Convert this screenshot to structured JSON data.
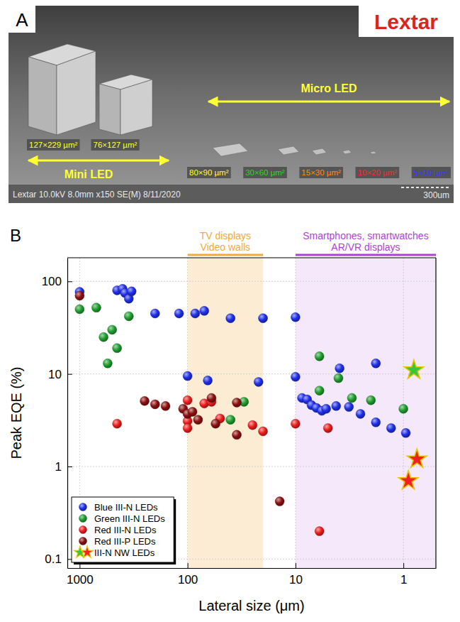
{
  "panel_a": {
    "label": "A",
    "logo": "Lextar",
    "micro_label": "Micro LED",
    "mini_label": "Mini LED",
    "mini_sizes": [
      {
        "text": "127×229 µm²",
        "color": "#ffff33"
      },
      {
        "text": "76×127 µm²",
        "color": "#ffff33"
      }
    ],
    "micro_sizes": [
      {
        "text": "80×90 µm²",
        "color": "#ffff33"
      },
      {
        "text": "30×60 µm²",
        "color": "#22dd22"
      },
      {
        "text": "15×30 µm²",
        "color": "#ff8c1a"
      },
      {
        "text": "10×20 µm²",
        "color": "#ff2a2a"
      },
      {
        "text": "5×10 µm²",
        "color": "#3a3aff"
      }
    ],
    "footer": "Lextar 10.0kV 8.0mm x150 SE(M) 8/11/2020",
    "scale_bar": "300um"
  },
  "chart_data": {
    "type": "scatter",
    "panel_label": "B",
    "x_label": "Lateral size (μm)",
    "y_label": "Peak EQE (%)",
    "log": true,
    "grid": true,
    "legend": "lower left",
    "xlim": [
      1300,
      0.5
    ],
    "xticks": [
      1000,
      100,
      10,
      1
    ],
    "ylim": [
      0.08,
      180
    ],
    "yticks": [
      0.1,
      1,
      10,
      100
    ],
    "annotations": [
      {
        "text": [
          "TV displays",
          "Video walls"
        ],
        "x_range": [
          100,
          20
        ],
        "color": "#f2a93b"
      },
      {
        "text": [
          "Smartphones, smartwatches",
          "AR/VR displays"
        ],
        "x_range": [
          10,
          0.5
        ],
        "color": "#b03fd6"
      }
    ],
    "series": [
      {
        "name": "Blue III-N LEDs",
        "color": "#1f2fe8",
        "marker": "circle",
        "x": [
          1000,
          450,
          400,
          380,
          350,
          330,
          200,
          120,
          100,
          85,
          70,
          65,
          40,
          22,
          20,
          10,
          10,
          8.7,
          7.8,
          7.1,
          6.4,
          5.7,
          5.2,
          4.2,
          3.2,
          2.5,
          1.8,
          1.3,
          0.95,
          3.9,
          1.8
        ],
        "values": [
          77,
          80,
          83,
          75,
          65,
          78,
          45,
          45,
          9.5,
          45,
          48,
          8.5,
          40,
          8.2,
          40,
          41,
          9.3,
          5.5,
          5.3,
          4.6,
          4.3,
          4.0,
          4.2,
          4.5,
          4.4,
          3.7,
          3.0,
          2.6,
          2.3,
          11.5,
          13
        ]
      },
      {
        "name": "Green III-N LEDs",
        "color": "#1e9e2e",
        "marker": "circle",
        "x": [
          1000,
          700,
          600,
          550,
          500,
          450,
          350,
          40,
          30,
          6,
          6,
          4,
          3,
          2,
          1
        ],
        "values": [
          50,
          52,
          25,
          13,
          30,
          19,
          42,
          3.2,
          5,
          15.5,
          6.6,
          9,
          5.5,
          5.2,
          4.2
        ]
      },
      {
        "name": "Red III-N LEDs",
        "color": "#ee1c1c",
        "marker": "circle",
        "x": [
          450,
          100,
          100,
          100,
          70,
          50,
          60,
          25,
          20,
          10,
          5,
          6
        ],
        "values": [
          2.9,
          5.2,
          3.1,
          2.6,
          4.8,
          3.3,
          5.0,
          2.8,
          2.4,
          2.9,
          2.6,
          0.2
        ]
      },
      {
        "name": "Red III-P LEDs",
        "color": "#8b0f0f",
        "marker": "circle",
        "x": [
          1000,
          250,
          200,
          160,
          110,
          100,
          90,
          80,
          60,
          55,
          35,
          35,
          14
        ],
        "values": [
          70,
          5.1,
          4.7,
          4.5,
          4.2,
          3.7,
          3.9,
          3.2,
          5.5,
          2.9,
          4.9,
          2.2,
          0.42
        ]
      },
      {
        "name": "III-N NW LEDs",
        "colors": [
          "#3cc43c",
          "#ee2222",
          "#ee2222"
        ],
        "marker": "star",
        "x": [
          0.8,
          0.75,
          0.9
        ],
        "values": [
          11,
          1.2,
          0.7
        ]
      }
    ]
  }
}
